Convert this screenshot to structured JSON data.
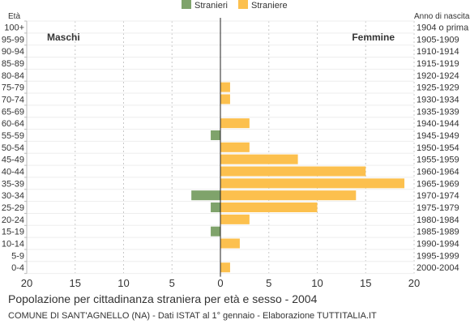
{
  "chart_data": {
    "type": "bar",
    "orientation": "horizontal",
    "title": "Popolazione per cittadinanza straniera per età e sesso - 2004",
    "subtitle": "COMUNE DI SANT'AGNELLO (NA) - Dati ISTAT al 1° gennaio - Elaborazione TUTTITALIA.IT",
    "left_axis_label": "Età",
    "right_axis_label": "Anno di nascita",
    "side_labels": {
      "left": "Maschi",
      "right": "Femmine"
    },
    "legend": {
      "placement": "top-center",
      "entries": [
        "Stranieri",
        "Straniere"
      ]
    },
    "x_ticks": [
      20,
      15,
      10,
      5,
      0,
      5,
      10,
      15,
      20
    ],
    "xlim": [
      -20,
      20
    ],
    "grid": true,
    "categories": [
      "100+",
      "95-99",
      "90-94",
      "85-89",
      "80-84",
      "75-79",
      "70-74",
      "65-69",
      "60-64",
      "55-59",
      "50-54",
      "45-49",
      "40-44",
      "35-39",
      "30-34",
      "25-29",
      "20-24",
      "15-19",
      "10-14",
      "5-9",
      "0-4"
    ],
    "birth_years": [
      "1904 o prima",
      "1905-1909",
      "1910-1914",
      "1915-1919",
      "1920-1924",
      "1925-1929",
      "1930-1934",
      "1935-1939",
      "1940-1944",
      "1945-1949",
      "1950-1954",
      "1955-1959",
      "1960-1964",
      "1965-1969",
      "1970-1974",
      "1975-1979",
      "1980-1984",
      "1985-1989",
      "1990-1994",
      "1995-1999",
      "2000-2004"
    ],
    "series": [
      {
        "name": "Stranieri",
        "color": "#7fa36b",
        "values": [
          0,
          0,
          0,
          0,
          0,
          0,
          0,
          0,
          0,
          1,
          0,
          0,
          0,
          0,
          3,
          1,
          0,
          1,
          0,
          0,
          0
        ]
      },
      {
        "name": "Straniere",
        "color": "#fcc04e",
        "values": [
          0,
          0,
          0,
          0,
          0,
          1,
          1,
          0,
          3,
          0,
          3,
          8,
          15,
          19,
          14,
          10,
          3,
          0,
          2,
          0,
          1
        ]
      }
    ]
  }
}
